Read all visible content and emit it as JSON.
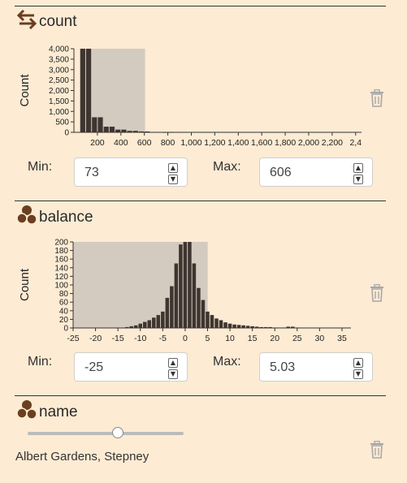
{
  "panels": [
    {
      "title": "count",
      "icon": "swap-arrows-icon",
      "chart_data": {
        "type": "bar",
        "ylabel": "Count",
        "xlim": [
          0,
          2450
        ],
        "ylim": [
          0,
          4000
        ],
        "bin_width": 50,
        "x": [
          75,
          125,
          175,
          225,
          275,
          325,
          375,
          425,
          475,
          525,
          575,
          625,
          675,
          725,
          775,
          825
        ],
        "values": [
          4000,
          4000,
          720,
          720,
          270,
          270,
          130,
          130,
          70,
          70,
          40,
          40,
          15,
          15,
          8,
          8
        ],
        "selection": [
          73,
          606
        ],
        "xticks": [
          "200",
          "400",
          "600",
          "800",
          "1,000",
          "1,200",
          "1,400",
          "1,600",
          "1,800",
          "2,000",
          "2,200",
          "2,4"
        ],
        "xtick_values": [
          200,
          400,
          600,
          800,
          1000,
          1200,
          1400,
          1600,
          1800,
          2000,
          2200,
          2400
        ],
        "yticks": [
          "0",
          "500",
          "1,000",
          "1,500",
          "2,000",
          "2,500",
          "3,000",
          "3,500",
          "4,000"
        ],
        "ytick_values": [
          0,
          500,
          1000,
          1500,
          2000,
          2500,
          3000,
          3500,
          4000
        ]
      },
      "min_label": "Min:",
      "max_label": "Max:",
      "min_value": "73",
      "max_value": "606"
    },
    {
      "title": "balance",
      "icon": "coins-icon",
      "chart_data": {
        "type": "bar",
        "ylabel": "Count",
        "xlim": [
          -25,
          37
        ],
        "ylim": [
          0,
          200
        ],
        "bin_width": 1,
        "x": [
          -13,
          -12,
          -11,
          -10,
          -9,
          -8,
          -7,
          -6,
          -5,
          -4,
          -3,
          -2,
          -1,
          0,
          1,
          2,
          3,
          4,
          5,
          6,
          7,
          8,
          9,
          10,
          11,
          12,
          13,
          14,
          15,
          16,
          17,
          18,
          19,
          20,
          21,
          22,
          23,
          24,
          25
        ],
        "values": [
          2,
          4,
          6,
          10,
          14,
          18,
          24,
          30,
          38,
          70,
          97,
          150,
          194,
          200,
          200,
          150,
          93,
          65,
          38,
          30,
          22,
          18,
          13,
          10,
          8,
          7,
          6,
          5,
          4,
          3,
          2,
          2,
          2,
          1,
          1,
          1,
          3,
          3,
          1
        ],
        "selection": [
          -25,
          5.03
        ],
        "xticks": [
          "-25",
          "-20",
          "-15",
          "-10",
          "-5",
          "0",
          "5",
          "10",
          "15",
          "20",
          "25",
          "30",
          "35"
        ],
        "xtick_values": [
          -25,
          -20,
          -15,
          -10,
          -5,
          0,
          5,
          10,
          15,
          20,
          25,
          30,
          35
        ],
        "yticks": [
          "0",
          "20",
          "40",
          "60",
          "80",
          "100",
          "120",
          "140",
          "160",
          "180",
          "200"
        ],
        "ytick_values": [
          0,
          20,
          40,
          60,
          80,
          100,
          120,
          140,
          160,
          180,
          200
        ]
      },
      "min_label": "Min:",
      "max_label": "Max:",
      "min_value": "-25",
      "max_value": "5.03"
    }
  ],
  "name_panel": {
    "title": "name",
    "icon": "coins-icon",
    "slider_value": 0.6,
    "value_text": "Albert Gardens, Stepney"
  },
  "icons": {
    "delete": "trash-icon",
    "spin_up": "spin-up-icon",
    "spin_down": "spin-down-icon"
  },
  "colors": {
    "background": "#fdebd3",
    "bar": "#3f3530",
    "selection": "#d4cbc0",
    "trash": "#a8a8a8",
    "icon": "#6b3f21"
  }
}
